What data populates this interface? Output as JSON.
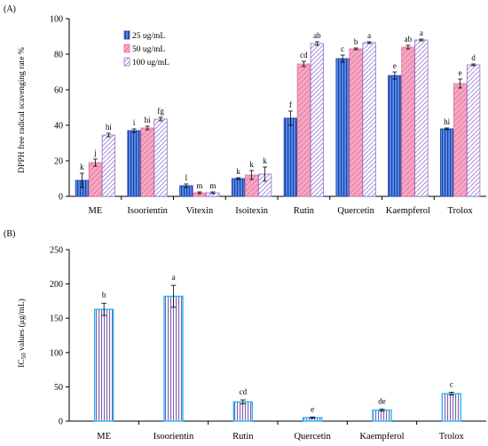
{
  "chart_data": [
    {
      "panel_label": "(A)",
      "type": "bar",
      "ylabel": "DPPH free radical scavenging rate %",
      "ylim": [
        0,
        100
      ],
      "yticks": [
        0,
        20,
        40,
        60,
        80,
        100
      ],
      "grid": false,
      "legend_position": "top-left",
      "categories": [
        "ME",
        "Isoorientin",
        "Vitexin",
        "Isoitexin",
        "Rutin",
        "Quercetin",
        "Kaempferol",
        "Trolox"
      ],
      "series": [
        {
          "name": "25 ug/mL",
          "color": "#3f7fe0",
          "values": [
            9,
            37,
            6,
            10,
            44,
            77.5,
            68,
            38
          ],
          "errors": [
            4,
            1,
            1,
            0.5,
            4,
            2,
            2,
            0.5
          ],
          "letters": [
            "k",
            "i",
            "l",
            "k",
            "f",
            "c",
            "e",
            "hi"
          ]
        },
        {
          "name": "50 ug/mL",
          "color": "#f48fb1",
          "values": [
            19,
            38.5,
            2,
            12,
            74.5,
            83,
            84,
            63.5
          ],
          "errors": [
            2,
            1,
            0.5,
            2.5,
            1.5,
            0.5,
            1,
            2.5
          ],
          "letters": [
            "j",
            "hi",
            "m",
            "k",
            "cd",
            "b",
            "ab",
            "e"
          ]
        },
        {
          "name": "100 ug/mL",
          "color": "#b39ddb",
          "values": [
            34.5,
            43.5,
            2,
            12.5,
            86,
            86.5,
            88,
            74
          ],
          "errors": [
            1,
            1,
            0.5,
            4,
            1,
            0.5,
            0.5,
            0.5
          ],
          "letters": [
            "hi",
            "fg",
            "m",
            "k",
            "ab",
            "a",
            "a",
            "d"
          ]
        }
      ]
    },
    {
      "panel_label": "(B)",
      "type": "bar",
      "ylabel": "IC50 values (μg/mL)",
      "ylim": [
        0,
        250
      ],
      "yticks": [
        0,
        50,
        100,
        150,
        200,
        250
      ],
      "grid": false,
      "categories": [
        "ME",
        "Isoorientin",
        "Rutin",
        "Quercetin",
        "Kaempferol",
        "Trolox"
      ],
      "values": [
        163,
        182,
        28,
        5,
        16,
        40
      ],
      "errors": [
        9,
        16,
        3,
        1,
        1.5,
        2
      ],
      "letters": [
        "b",
        "a",
        "cd",
        "e",
        "de",
        "c"
      ],
      "color": "#29b6f6"
    }
  ]
}
